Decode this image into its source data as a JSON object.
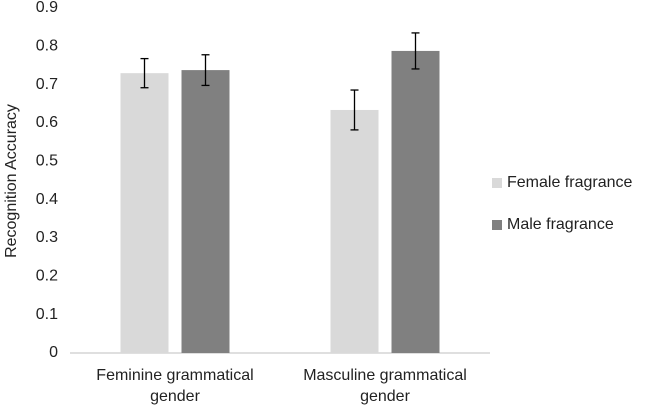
{
  "chart_data": {
    "type": "bar",
    "y_label": "Recognition Accuracy",
    "categories": [
      "Feminine grammatical gender",
      "Masculine grammatical gender"
    ],
    "series": [
      {
        "name": "Female fragrance",
        "color": "#d9d9d9",
        "values": [
          0.73,
          0.634
        ],
        "errors": [
          0.038,
          0.052
        ]
      },
      {
        "name": "Male fragrance",
        "color": "#808080",
        "values": [
          0.738,
          0.788
        ],
        "errors": [
          0.04,
          0.047
        ]
      }
    ],
    "ylim": [
      0,
      0.9
    ],
    "yticks": [
      0,
      0.1,
      0.2,
      0.3,
      0.4,
      0.5,
      0.6,
      0.7,
      0.8,
      0.9
    ],
    "grid": false,
    "legend": "right"
  }
}
